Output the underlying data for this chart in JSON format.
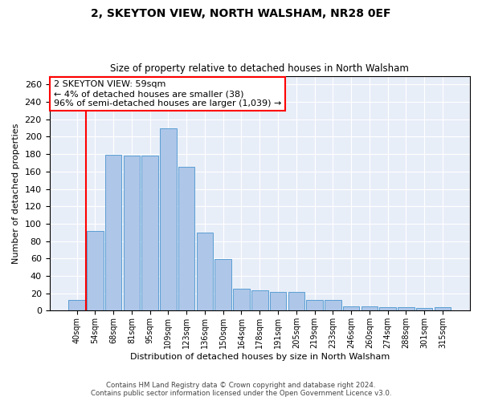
{
  "title": "2, SKEYTON VIEW, NORTH WALSHAM, NR28 0EF",
  "subtitle": "Size of property relative to detached houses in North Walsham",
  "xlabel": "Distribution of detached houses by size in North Walsham",
  "ylabel": "Number of detached properties",
  "bar_labels": [
    "40sqm",
    "54sqm",
    "68sqm",
    "81sqm",
    "95sqm",
    "109sqm",
    "123sqm",
    "136sqm",
    "150sqm",
    "164sqm",
    "178sqm",
    "191sqm",
    "205sqm",
    "219sqm",
    "233sqm",
    "246sqm",
    "260sqm",
    "274sqm",
    "288sqm",
    "301sqm",
    "315sqm"
  ],
  "bar_values": [
    12,
    92,
    179,
    178,
    178,
    210,
    165,
    90,
    59,
    25,
    23,
    22,
    22,
    12,
    12,
    5,
    5,
    4,
    4,
    3,
    4
  ],
  "bar_color": "#aec6e8",
  "bar_edge_color": "#5a9fd4",
  "annotation_text": "2 SKEYTON VIEW: 59sqm\n← 4% of detached houses are smaller (38)\n96% of semi-detached houses are larger (1,039) →",
  "annotation_box_color": "white",
  "annotation_box_edge_color": "red",
  "red_line_color": "red",
  "ylim": [
    0,
    270
  ],
  "yticks": [
    0,
    20,
    40,
    60,
    80,
    100,
    120,
    140,
    160,
    180,
    200,
    220,
    240,
    260
  ],
  "background_color": "#e8eef8",
  "grid_color": "white",
  "footer_line1": "Contains HM Land Registry data © Crown copyright and database right 2024.",
  "footer_line2": "Contains public sector information licensed under the Open Government Licence v3.0."
}
